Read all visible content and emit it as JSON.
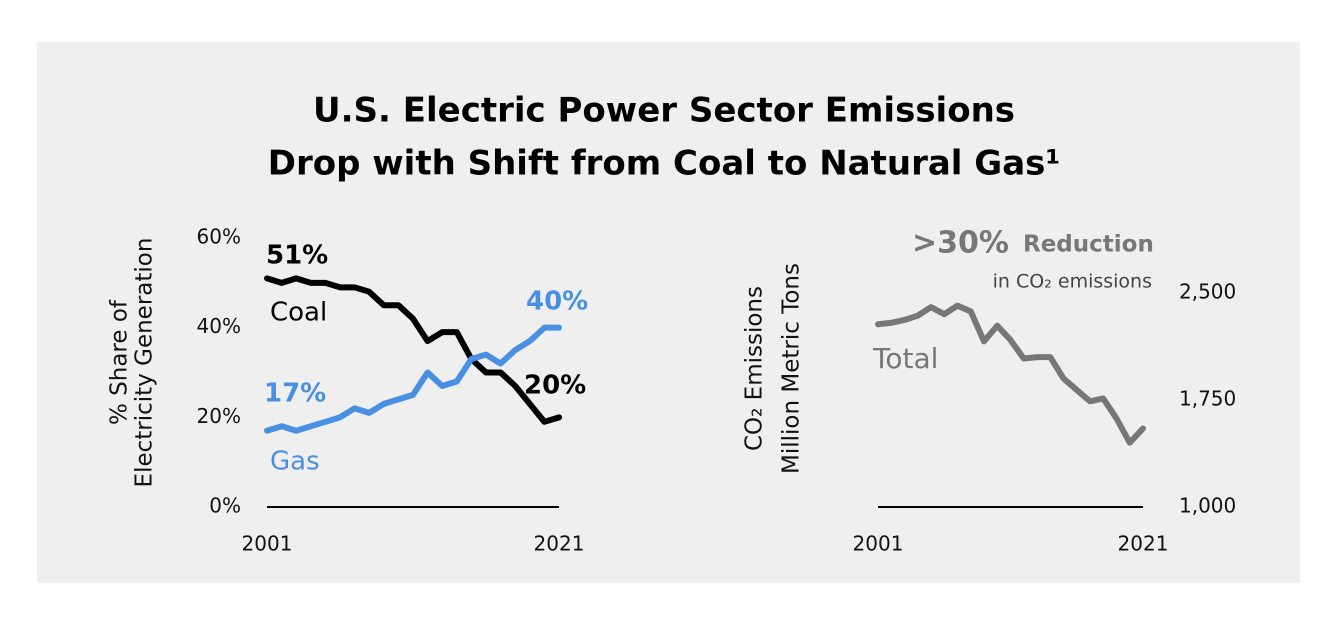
{
  "title": [
    "U.S. Electric Power Sector Emissions",
    "Drop with Shift from Coal to Natural Gas¹"
  ],
  "chart_data": [
    {
      "type": "line",
      "ylabel": [
        "% Share of",
        "Electricity Generation"
      ],
      "x": [
        2001,
        2002,
        2003,
        2004,
        2005,
        2006,
        2007,
        2008,
        2009,
        2010,
        2011,
        2012,
        2013,
        2014,
        2015,
        2016,
        2017,
        2018,
        2019,
        2020,
        2021
      ],
      "xlim": [
        2001,
        2021
      ],
      "xticks": [
        2001,
        2021
      ],
      "ylim": [
        0,
        60
      ],
      "yticks": [
        {
          "value": 0,
          "label": "0%"
        },
        {
          "value": 20,
          "label": "20%"
        },
        {
          "value": 40,
          "label": "40%"
        },
        {
          "value": 60,
          "label": "60%"
        }
      ],
      "y_axis_position": "left",
      "series": [
        {
          "name": "Coal",
          "color": "#000000",
          "start_label": "51%",
          "end_label": "20%",
          "values": [
            51,
            50,
            51,
            50,
            50,
            49,
            49,
            48,
            45,
            45,
            42,
            37,
            39,
            39,
            33,
            30,
            30,
            27,
            23,
            19,
            20
          ]
        },
        {
          "name": "Gas",
          "color": "#4a90e2",
          "start_label": "17%",
          "end_label": "40%",
          "values": [
            17,
            18,
            17,
            18,
            19,
            20,
            22,
            21,
            23,
            24,
            25,
            30,
            27,
            28,
            33,
            34,
            32,
            35,
            37,
            40,
            40
          ]
        }
      ]
    },
    {
      "type": "line",
      "ylabel": [
        "CO₂ Emissions",
        "Million Metric Tons"
      ],
      "annotation": {
        "headline": ">30%",
        "text": "Reduction",
        "detail": "in CO₂ emissions"
      },
      "x": [
        2001,
        2002,
        2003,
        2004,
        2005,
        2006,
        2007,
        2008,
        2009,
        2010,
        2011,
        2012,
        2013,
        2014,
        2015,
        2016,
        2017,
        2018,
        2019,
        2020,
        2021
      ],
      "xlim": [
        2001,
        2021
      ],
      "xticks": [
        2001,
        2021
      ],
      "ylim": [
        1000,
        2800
      ],
      "yticks": [
        {
          "value": 1000,
          "label": "1,000"
        },
        {
          "value": 1750,
          "label": "1,750"
        },
        {
          "value": 2500,
          "label": "2,500"
        }
      ],
      "y_axis_position": "right",
      "series": [
        {
          "name": "Total",
          "color": "#777777",
          "values": [
            2280,
            2290,
            2310,
            2340,
            2400,
            2350,
            2410,
            2370,
            2160,
            2270,
            2170,
            2040,
            2050,
            2050,
            1900,
            1820,
            1740,
            1760,
            1620,
            1450,
            1550
          ]
        }
      ]
    }
  ]
}
